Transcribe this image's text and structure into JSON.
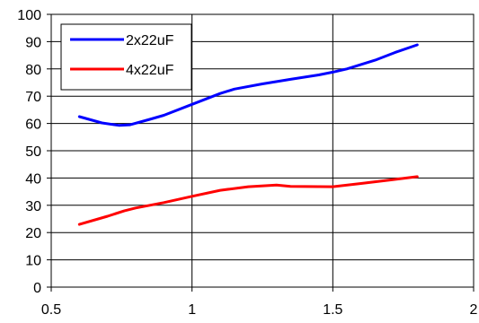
{
  "chart_data": {
    "type": "line",
    "title": "",
    "xlabel": "",
    "ylabel": "",
    "xlim": [
      0.5,
      2
    ],
    "ylim": [
      0,
      100
    ],
    "x_ticks": [
      0.5,
      1,
      1.5,
      2
    ],
    "x_tick_labels": [
      "0.5",
      "1",
      "1.5",
      "2"
    ],
    "y_ticks": [
      0,
      10,
      20,
      30,
      40,
      50,
      60,
      70,
      80,
      90,
      100
    ],
    "y_tick_labels": [
      "0",
      "10",
      "20",
      "30",
      "40",
      "50",
      "60",
      "70",
      "80",
      "90",
      "100"
    ],
    "grid": true,
    "legend_position": "top-left",
    "series": [
      {
        "name": "2x22uF",
        "color": "#0000ff",
        "x": [
          0.6,
          0.68,
          0.74,
          0.78,
          0.85,
          0.9,
          1.0,
          1.1,
          1.15,
          1.25,
          1.35,
          1.45,
          1.5,
          1.55,
          1.65,
          1.72,
          1.8
        ],
        "y": [
          62.5,
          60.2,
          59.3,
          59.5,
          61.5,
          63.0,
          67.0,
          71.0,
          72.6,
          74.5,
          76.2,
          77.8,
          78.8,
          80.0,
          83.2,
          86.0,
          88.8
        ]
      },
      {
        "name": "4x22uF",
        "color": "#ff0000",
        "x": [
          0.6,
          0.7,
          0.76,
          0.8,
          0.9,
          1.0,
          1.1,
          1.2,
          1.3,
          1.35,
          1.5,
          1.6,
          1.7,
          1.8
        ],
        "y": [
          23.0,
          26.0,
          28.0,
          29.0,
          31.0,
          33.3,
          35.5,
          36.8,
          37.4,
          36.9,
          36.8,
          38.0,
          39.2,
          40.5
        ]
      }
    ]
  }
}
